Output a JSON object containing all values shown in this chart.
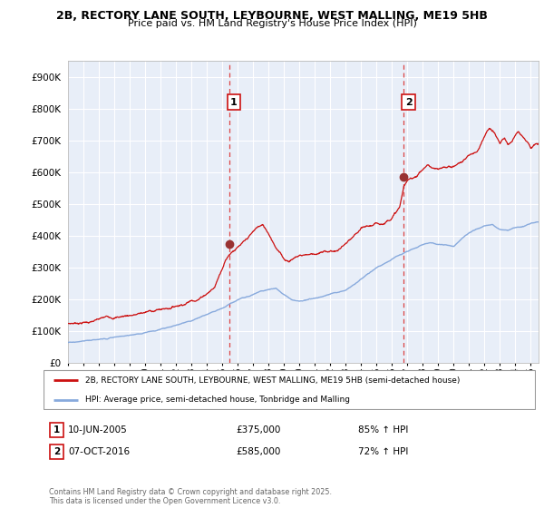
{
  "title_line1": "2B, RECTORY LANE SOUTH, LEYBOURNE, WEST MALLING, ME19 5HB",
  "title_line2": "Price paid vs. HM Land Registry's House Price Index (HPI)",
  "xlim_start": 1995.0,
  "xlim_end": 2025.5,
  "ylim_min": 0,
  "ylim_max": 950000,
  "yticks": [
    0,
    100000,
    200000,
    300000,
    400000,
    500000,
    600000,
    700000,
    800000,
    900000
  ],
  "ytick_labels": [
    "£0",
    "£100K",
    "£200K",
    "£300K",
    "£400K",
    "£500K",
    "£600K",
    "£700K",
    "£800K",
    "£900K"
  ],
  "xticks": [
    1995,
    1996,
    1997,
    1998,
    1999,
    2000,
    2001,
    2002,
    2003,
    2004,
    2005,
    2006,
    2007,
    2008,
    2009,
    2010,
    2011,
    2012,
    2013,
    2014,
    2015,
    2016,
    2017,
    2018,
    2019,
    2020,
    2021,
    2022,
    2023,
    2024,
    2025
  ],
  "sale1_x": 2005.44,
  "sale1_y": 375000,
  "sale1_label": "1",
  "sale2_x": 2016.77,
  "sale2_y": 585000,
  "sale2_label": "2",
  "vline1_x": 2005.44,
  "vline2_x": 2016.77,
  "vline_color": "#dd4444",
  "red_line_color": "#cc1111",
  "blue_line_color": "#88aadd",
  "background_color": "#e8eef8",
  "grid_color": "#ffffff",
  "legend_label_red": "2B, RECTORY LANE SOUTH, LEYBOURNE, WEST MALLING, ME19 5HB (semi-detached house)",
  "legend_label_blue": "HPI: Average price, semi-detached house, Tonbridge and Malling",
  "table_row1": [
    "1",
    "10-JUN-2005",
    "£375,000",
    "85% ↑ HPI"
  ],
  "table_row2": [
    "2",
    "07-OCT-2016",
    "£585,000",
    "72% ↑ HPI"
  ],
  "footer": "Contains HM Land Registry data © Crown copyright and database right 2025.\nThis data is licensed under the Open Government Licence v3.0."
}
